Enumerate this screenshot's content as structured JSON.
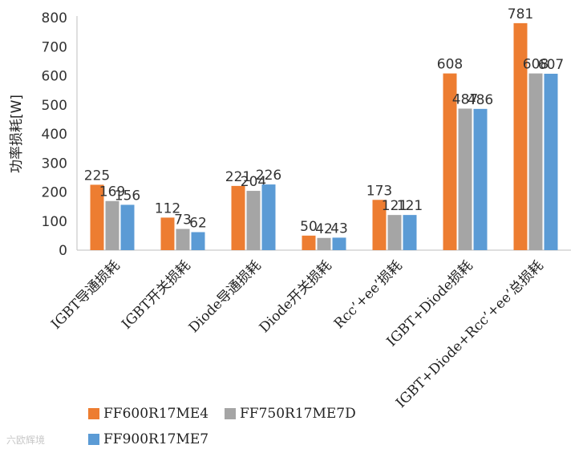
{
  "chart_data": {
    "type": "bar",
    "title": "",
    "xlabel": "",
    "ylabel": "功率损耗[W]",
    "ylim": [
      0,
      800
    ],
    "yticks": [
      0,
      100,
      200,
      300,
      400,
      500,
      600,
      700,
      800
    ],
    "categories": [
      "IGBT导通损耗",
      "IGBT开关损耗",
      "Diode导通损耗",
      "Diode开关损耗",
      "Rcc’+ee’损耗",
      "IGBT+Diode损耗",
      "IGBT+Diode+Rcc’+ee’总损耗"
    ],
    "series": [
      {
        "name": "FF600R17ME4",
        "color": "#ED7D31",
        "values": [
          225,
          112,
          221,
          50,
          173,
          608,
          781
        ]
      },
      {
        "name": "FF750R17ME7D",
        "color": "#A5A5A5",
        "values": [
          169,
          73,
          204,
          42,
          121,
          487,
          608
        ]
      },
      {
        "name": "FF900R17ME7",
        "color": "#5B9BD5",
        "values": [
          156,
          62,
          226,
          43,
          121,
          486,
          607
        ]
      }
    ],
    "grid": false,
    "legend": "bottom-left"
  },
  "watermark": "六欧辉境"
}
